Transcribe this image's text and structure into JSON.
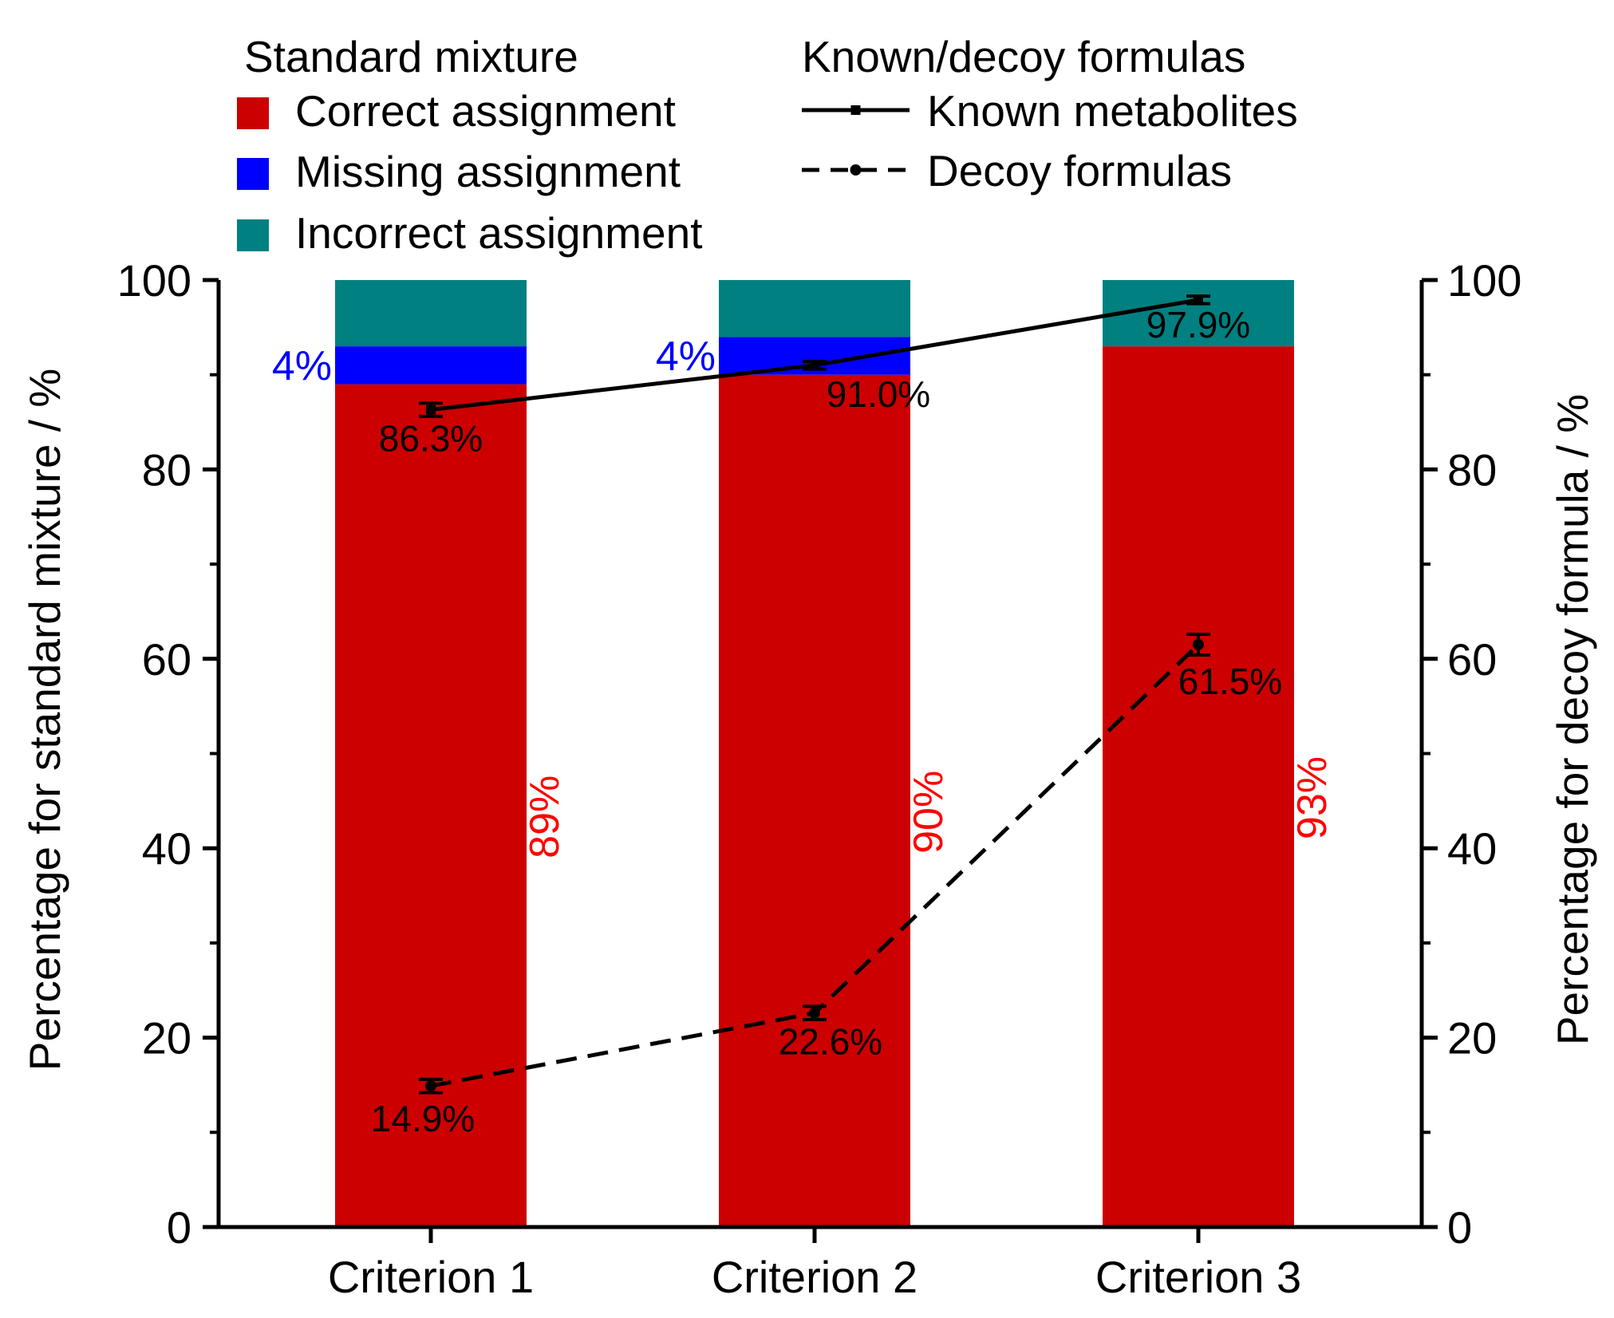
{
  "chart_data": {
    "type": "bar",
    "categories": [
      "Criterion 1",
      "Criterion 2",
      "Criterion 3"
    ],
    "stack_series": [
      {
        "name": "Correct assignment",
        "color": "#cc0000",
        "values": [
          89,
          90,
          93
        ],
        "labels": [
          "89%",
          "90%",
          "93%"
        ],
        "label_color": "#ff0000"
      },
      {
        "name": "Missing assignment",
        "color": "#0000ff",
        "values": [
          4,
          4,
          0
        ],
        "labels": [
          "4%",
          "4%",
          ""
        ],
        "label_color": "#0000ff"
      },
      {
        "name": "Incorrect assignment",
        "color": "#008080",
        "values": [
          7,
          6,
          7
        ]
      }
    ],
    "line_series": [
      {
        "name": "Known metabolites",
        "style": "solid",
        "marker": "square",
        "values": [
          86.3,
          91.0,
          97.9
        ],
        "errors": [
          0.7,
          0.4,
          0.4
        ],
        "labels": [
          "86.3%",
          "91.0%",
          "97.9%"
        ]
      },
      {
        "name": "Decoy formulas",
        "style": "dashed",
        "marker": "circle",
        "values": [
          14.9,
          22.6,
          61.5
        ],
        "errors": [
          0.7,
          0.7,
          1.1
        ],
        "labels": [
          "14.9%",
          "22.6%",
          "61.5%"
        ]
      }
    ],
    "legend_left_title": "Standard mixture",
    "legend_right_title": "Known/decoy formulas",
    "ylabel_left": "Percentage for standard mixture / %",
    "ylabel_right": "Percentage for decoy formula / %",
    "ylim": [
      0,
      100
    ],
    "yticks": [
      0,
      20,
      40,
      60,
      80,
      100
    ],
    "ytick_labels": [
      "0",
      "20",
      "40",
      "60",
      "80",
      "100"
    ],
    "text_color": "#000000"
  }
}
